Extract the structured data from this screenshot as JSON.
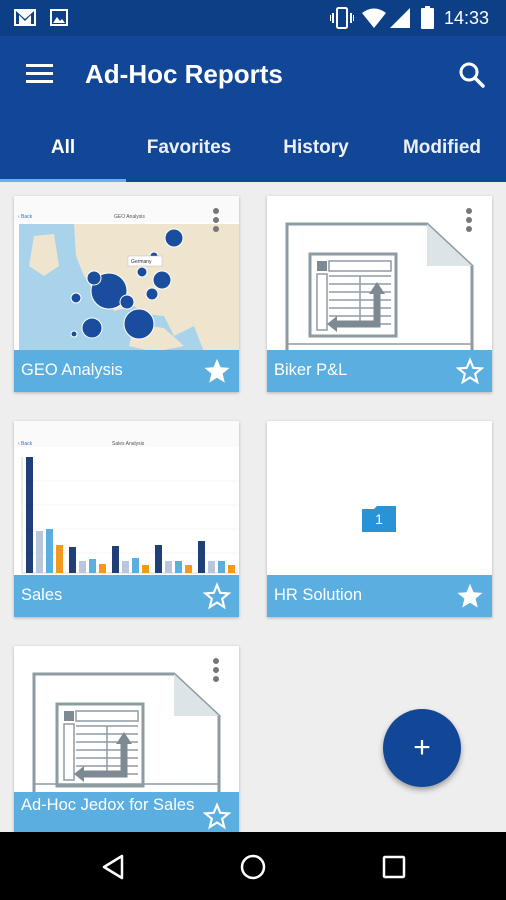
{
  "status": {
    "time": "14:33"
  },
  "header": {
    "title": "Ad-Hoc Reports"
  },
  "tabs": [
    {
      "label": "All",
      "active": true
    },
    {
      "label": "Favorites"
    },
    {
      "label": "History"
    },
    {
      "label": "Modified"
    }
  ],
  "cards": [
    {
      "title": "GEO Analysis",
      "thumb": "map",
      "favorite": true,
      "preview_title": "GEO Analysis",
      "preview_tag": "Germany"
    },
    {
      "title": "Biker P&L",
      "thumb": "report",
      "favorite": false
    },
    {
      "title": "Sales",
      "thumb": "chart",
      "favorite": false,
      "preview_title": "Sales Analysis"
    },
    {
      "title": "HR Solution",
      "thumb": "folder",
      "favorite": true,
      "folder_count": "1"
    },
    {
      "title": "Ad-Hoc Jedox for Sales",
      "thumb": "report",
      "favorite": false
    }
  ],
  "fab": {
    "label": "+"
  },
  "colors": {
    "primary": "#124797",
    "statusbar": "#0d3f87",
    "card_footer": "#5aaee0",
    "accent": "#5bb7e8"
  }
}
